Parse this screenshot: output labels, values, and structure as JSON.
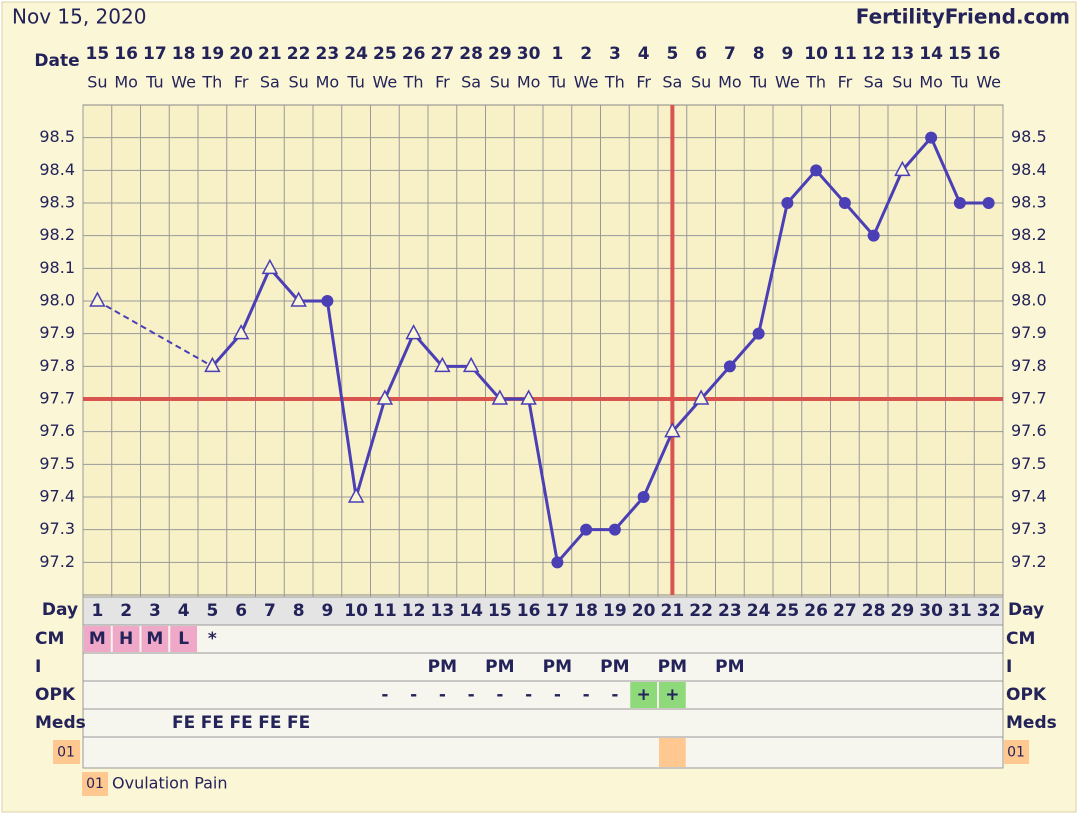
{
  "title": "Nov 15, 2020",
  "site": "FertilityFriend.com",
  "chart_data": {
    "type": "line",
    "date_label": "Date",
    "dates": [
      15,
      16,
      17,
      18,
      19,
      20,
      21,
      22,
      23,
      24,
      25,
      26,
      27,
      28,
      29,
      30,
      1,
      2,
      3,
      4,
      5,
      6,
      7,
      8,
      9,
      10,
      11,
      12,
      13,
      14,
      15,
      16
    ],
    "weekdays": [
      "Su",
      "Mo",
      "Tu",
      "We",
      "Th",
      "Fr",
      "Sa",
      "Su",
      "Mo",
      "Tu",
      "We",
      "Th",
      "Fr",
      "Sa",
      "Su",
      "Mo",
      "Tu",
      "We",
      "Th",
      "Fr",
      "Sa",
      "Su",
      "Mo",
      "Tu",
      "We",
      "Th",
      "Fr",
      "Sa",
      "Su",
      "Mo",
      "Tu",
      "We"
    ],
    "day_label": "Day",
    "categories": [
      1,
      2,
      3,
      4,
      5,
      6,
      7,
      8,
      9,
      10,
      11,
      12,
      13,
      14,
      15,
      16,
      17,
      18,
      19,
      20,
      21,
      22,
      23,
      24,
      25,
      26,
      27,
      28,
      29,
      30,
      31,
      32
    ],
    "values": [
      98.0,
      null,
      null,
      null,
      97.8,
      97.9,
      98.1,
      98.0,
      98.0,
      97.4,
      97.7,
      97.9,
      97.8,
      97.8,
      97.7,
      97.7,
      97.2,
      97.3,
      97.3,
      97.4,
      97.6,
      97.7,
      97.8,
      97.9,
      98.3,
      98.4,
      98.3,
      98.2,
      98.4,
      98.5,
      98.3,
      98.3
    ],
    "markers": [
      "triangle",
      null,
      null,
      null,
      "triangle",
      "triangle",
      "triangle",
      "triangle",
      "circle",
      "triangle",
      "triangle",
      "triangle",
      "triangle",
      "triangle",
      "triangle",
      "triangle",
      "circle",
      "circle",
      "circle",
      "circle",
      "triangle",
      "triangle",
      "circle",
      "circle",
      "circle",
      "circle",
      "circle",
      "circle",
      "triangle",
      "circle",
      "circle",
      "circle"
    ],
    "color": "#4b3fb5",
    "gap_line": "dashed",
    "ylim": [
      97.1,
      98.6
    ],
    "yticks": [
      {
        "value": 97.2,
        "label": "97.2"
      },
      {
        "value": 97.3,
        "label": "97.3"
      },
      {
        "value": 97.4,
        "label": "97.4"
      },
      {
        "value": 97.5,
        "label": "97.5"
      },
      {
        "value": 97.6,
        "label": "97.6"
      },
      {
        "value": 97.7,
        "label": "97.7"
      },
      {
        "value": 97.8,
        "label": "97.8"
      },
      {
        "value": 97.9,
        "label": "97.9"
      },
      {
        "value": 98.0,
        "label": "98.0"
      },
      {
        "value": 98.1,
        "label": "98.1"
      },
      {
        "value": 98.2,
        "label": "98.2"
      },
      {
        "value": 98.3,
        "label": "98.3"
      },
      {
        "value": 98.4,
        "label": "98.4"
      },
      {
        "value": 98.5,
        "label": "98.5"
      }
    ],
    "grid": true,
    "coverline": 97.7,
    "ovulation_day": 21,
    "marker_line_color": "#d9534f",
    "rows": [
      {
        "label": "CM",
        "cells": [
          "M",
          "H",
          "M",
          "L",
          "*",
          null,
          null,
          null,
          null,
          null,
          null,
          null,
          null,
          null,
          null,
          null,
          null,
          null,
          null,
          null,
          null,
          null,
          null,
          null,
          null,
          null,
          null,
          null,
          null,
          null,
          null,
          null
        ],
        "colors": [
          "#f0a8c8",
          "#f0a8c8",
          "#f0a8c8",
          "#f0a8c8",
          null,
          null,
          null,
          null,
          null,
          null,
          null,
          null,
          null,
          null,
          null,
          null,
          null,
          null,
          null,
          null,
          null,
          null,
          null,
          null,
          null,
          null,
          null,
          null,
          null,
          null,
          null,
          null
        ]
      },
      {
        "label": "I",
        "cells": [
          null,
          null,
          null,
          null,
          null,
          null,
          null,
          null,
          null,
          null,
          null,
          null,
          "PM",
          null,
          "PM",
          null,
          "PM",
          null,
          "PM",
          null,
          "PM",
          null,
          "PM",
          null,
          null,
          null,
          null,
          null,
          null,
          null,
          null,
          null
        ]
      },
      {
        "label": "OPK",
        "cells": [
          null,
          null,
          null,
          null,
          null,
          null,
          null,
          null,
          null,
          null,
          "-",
          "-",
          "-",
          "-",
          "-",
          "-",
          "-",
          "-",
          "-",
          "+",
          "+",
          null,
          null,
          null,
          null,
          null,
          null,
          null,
          null,
          null,
          null,
          null
        ],
        "colors": [
          null,
          null,
          null,
          null,
          null,
          null,
          null,
          null,
          null,
          null,
          null,
          null,
          null,
          null,
          null,
          null,
          null,
          null,
          null,
          "#8ed97a",
          "#8ed97a",
          null,
          null,
          null,
          null,
          null,
          null,
          null,
          null,
          null,
          null,
          null
        ]
      },
      {
        "label": "Meds",
        "cells": [
          null,
          null,
          null,
          "FE",
          "FE",
          "FE",
          "FE",
          "FE",
          null,
          null,
          null,
          null,
          null,
          null,
          null,
          null,
          null,
          null,
          null,
          null,
          null,
          null,
          null,
          null,
          null,
          null,
          null,
          null,
          null,
          null,
          null,
          null
        ]
      },
      {
        "code": "01",
        "cells": [
          null,
          null,
          null,
          null,
          null,
          null,
          null,
          null,
          null,
          null,
          null,
          null,
          null,
          null,
          null,
          null,
          null,
          null,
          null,
          null,
          null,
          null,
          null,
          null,
          null,
          null,
          null,
          null,
          null,
          null,
          null,
          null
        ],
        "colors": [
          null,
          null,
          null,
          null,
          null,
          null,
          null,
          null,
          null,
          null,
          null,
          null,
          null,
          null,
          null,
          null,
          null,
          null,
          null,
          null,
          "#ffc890",
          null,
          null,
          null,
          null,
          null,
          null,
          null,
          null,
          null,
          null,
          null
        ]
      }
    ],
    "legend": [
      {
        "code": "01",
        "text": "Ovulation Pain",
        "color": "#ffc890"
      }
    ]
  }
}
